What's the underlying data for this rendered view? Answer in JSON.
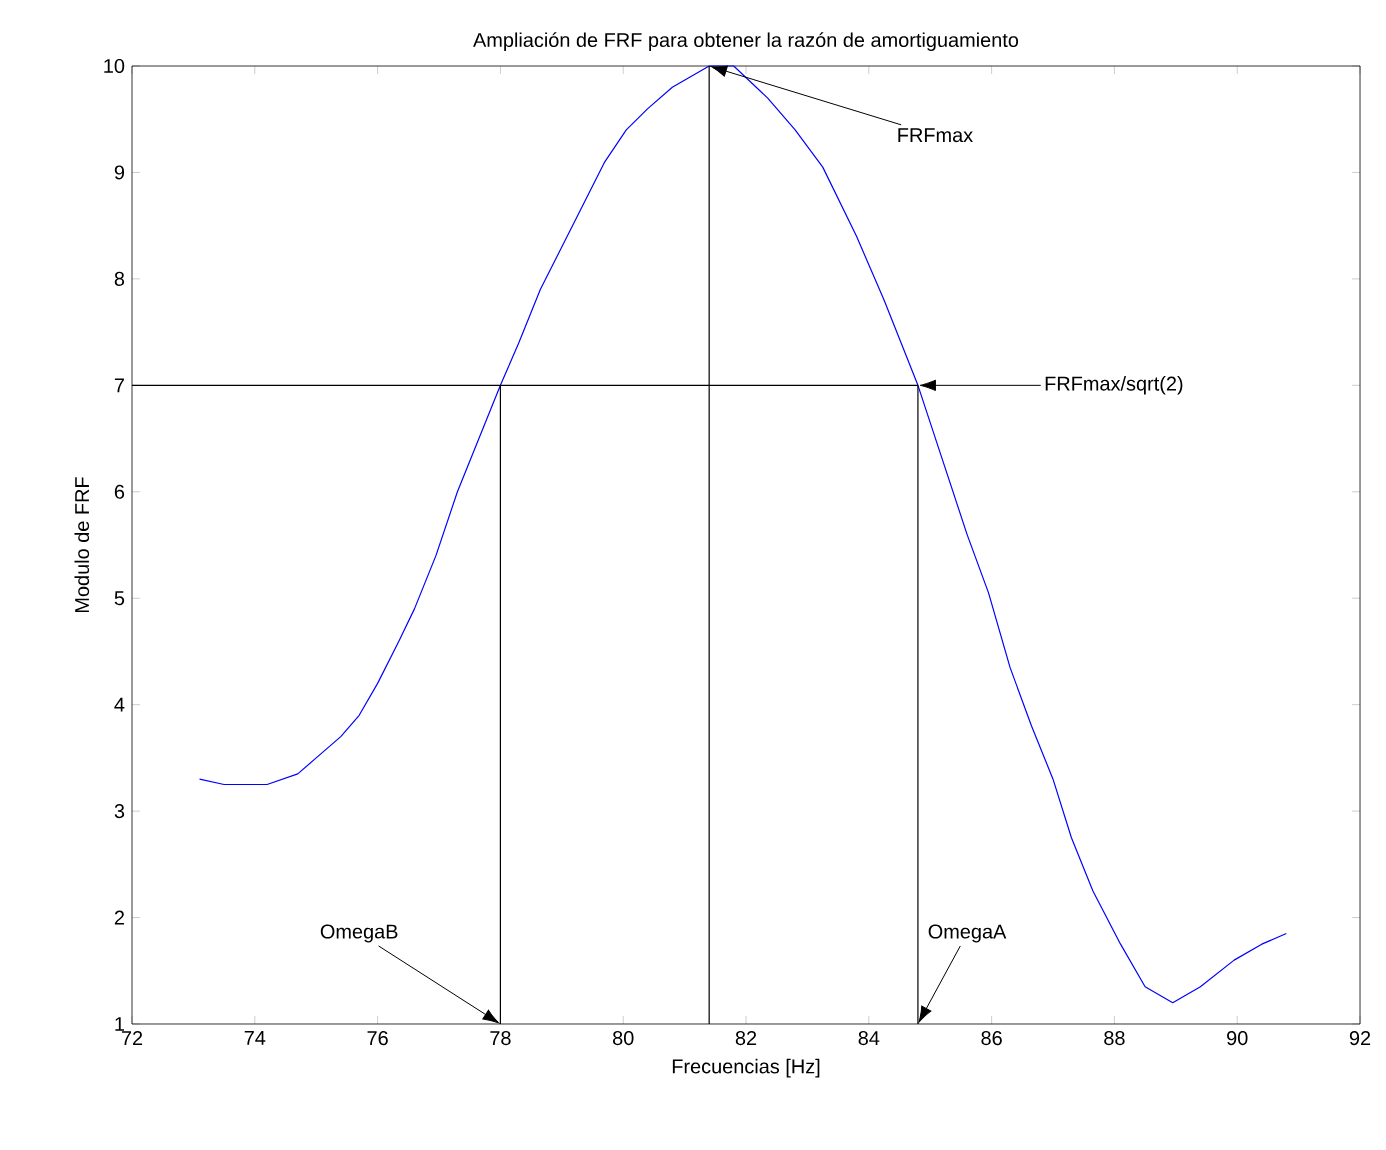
{
  "chart_data": {
    "type": "line",
    "title": "Ampliación de FRF para obtener la razón de amortiguamiento",
    "xlabel": "Frecuencias [Hz]",
    "ylabel": "Modulo de FRF",
    "xlim": [
      72,
      92
    ],
    "ylim": [
      1,
      10
    ],
    "xticks": [
      72,
      74,
      76,
      78,
      80,
      82,
      84,
      86,
      88,
      90,
      92
    ],
    "yticks": [
      1,
      2,
      3,
      4,
      5,
      6,
      7,
      8,
      9,
      10
    ],
    "series": [
      {
        "color": "#0000ff",
        "x": [
          73.1,
          73.5,
          74.2,
          74.7,
          75.0,
          75.4,
          75.7,
          76.0,
          76.35,
          76.6,
          76.95,
          77.3,
          77.65,
          78.0,
          78.3,
          78.65,
          79.0,
          79.35,
          79.7,
          80.05,
          80.4,
          80.8,
          81.4,
          81.8,
          82.35,
          82.8,
          83.25,
          83.8,
          84.25,
          84.8,
          85.2,
          85.6,
          85.95,
          86.3,
          86.65,
          87.0,
          87.3,
          87.65,
          88.1,
          88.5,
          88.95,
          89.4,
          89.95,
          90.4,
          90.8
        ],
        "values": [
          3.3,
          3.25,
          3.25,
          3.35,
          3.5,
          3.7,
          3.9,
          4.2,
          4.6,
          4.9,
          5.4,
          6.0,
          6.5,
          7.0,
          7.4,
          7.9,
          8.3,
          8.7,
          9.1,
          9.4,
          9.6,
          9.8,
          10.0,
          10.0,
          9.7,
          9.4,
          9.05,
          8.4,
          7.8,
          7.0,
          6.3,
          5.6,
          5.05,
          4.35,
          3.8,
          3.3,
          2.75,
          2.25,
          1.75,
          1.35,
          1.2,
          1.35,
          1.6,
          1.75,
          1.85
        ]
      },
      {
        "color": "#000000",
        "x": [
          72,
          84.8
        ],
        "values": [
          7,
          7
        ]
      },
      {
        "color": "#000000",
        "x": [
          78,
          78
        ],
        "values": [
          1,
          7
        ]
      },
      {
        "color": "#000000",
        "x": [
          81.4,
          81.4
        ],
        "values": [
          1,
          10
        ]
      },
      {
        "color": "#000000",
        "x": [
          84.8,
          84.8
        ],
        "values": [
          1,
          7
        ]
      }
    ],
    "annotations": [
      {
        "text": "FRFmax",
        "x": 81.4,
        "y": 10
      },
      {
        "text": "FRFmax/sqrt(2)",
        "x": 84.8,
        "y": 7
      },
      {
        "text": "OmegaB",
        "x": 78,
        "y": 1
      },
      {
        "text": "OmegaA",
        "x": 84.8,
        "y": 1
      }
    ]
  }
}
